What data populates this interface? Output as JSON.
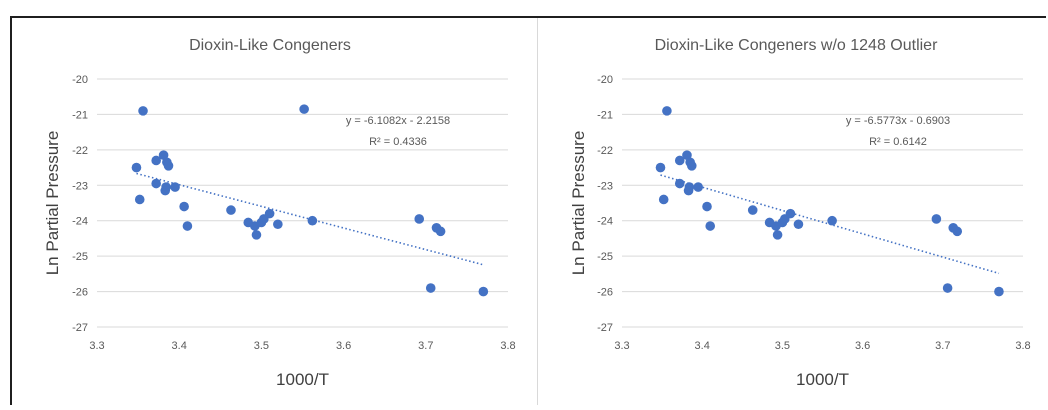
{
  "chart_data": [
    {
      "type": "scatter",
      "title": "Dioxin-Like Congeners",
      "xlabel": "1000/T",
      "ylabel": "Ln Partial Pressure",
      "xlim": [
        3.3,
        3.8
      ],
      "ylim": [
        -27,
        -20
      ],
      "x_ticks": [
        "3.3",
        "3.4",
        "3.5",
        "3.6",
        "3.7",
        "3.8"
      ],
      "y_ticks": [
        "-27",
        "-26",
        "-25",
        "-24",
        "-23",
        "-22",
        "-21",
        "-20"
      ],
      "grid": true,
      "marker_color": "#4472C4",
      "points": [
        {
          "x": 3.348,
          "y": -22.5
        },
        {
          "x": 3.352,
          "y": -23.4
        },
        {
          "x": 3.356,
          "y": -20.9
        },
        {
          "x": 3.372,
          "y": -22.3
        },
        {
          "x": 3.372,
          "y": -22.95
        },
        {
          "x": 3.381,
          "y": -22.15
        },
        {
          "x": 3.383,
          "y": -23.15
        },
        {
          "x": 3.384,
          "y": -23.05
        },
        {
          "x": 3.385,
          "y": -22.35
        },
        {
          "x": 3.387,
          "y": -22.45
        },
        {
          "x": 3.395,
          "y": -23.05
        },
        {
          "x": 3.406,
          "y": -23.6
        },
        {
          "x": 3.41,
          "y": -24.15
        },
        {
          "x": 3.463,
          "y": -23.7
        },
        {
          "x": 3.484,
          "y": -24.05
        },
        {
          "x": 3.492,
          "y": -24.15
        },
        {
          "x": 3.494,
          "y": -24.4
        },
        {
          "x": 3.5,
          "y": -24.05
        },
        {
          "x": 3.503,
          "y": -23.95
        },
        {
          "x": 3.51,
          "y": -23.8
        },
        {
          "x": 3.52,
          "y": -24.1
        },
        {
          "x": 3.552,
          "y": -20.85
        },
        {
          "x": 3.562,
          "y": -24.0
        },
        {
          "x": 3.692,
          "y": -23.95
        },
        {
          "x": 3.706,
          "y": -25.9
        },
        {
          "x": 3.713,
          "y": -24.2
        },
        {
          "x": 3.718,
          "y": -24.3
        },
        {
          "x": 3.77,
          "y": -26.0
        }
      ],
      "trendline": {
        "type": "linear",
        "slope": -6.1082,
        "intercept": -2.2158,
        "color": "#4472C4",
        "style": "dotted",
        "x_start": 3.348,
        "x_end": 3.77
      },
      "annotations": [
        "y = -6.1082x - 2.2158",
        "R² = 0.4336"
      ]
    },
    {
      "type": "scatter",
      "title": "Dioxin-Like Congeners w/o 1248 Outlier",
      "xlabel": "1000/T",
      "ylabel": "Ln Partial Pressure",
      "xlim": [
        3.3,
        3.8
      ],
      "ylim": [
        -27,
        -20
      ],
      "x_ticks": [
        "3.3",
        "3.4",
        "3.5",
        "3.6",
        "3.7",
        "3.8"
      ],
      "y_ticks": [
        "-27",
        "-26",
        "-25",
        "-24",
        "-23",
        "-22",
        "-21",
        "-20"
      ],
      "grid": true,
      "marker_color": "#4472C4",
      "points": [
        {
          "x": 3.348,
          "y": -22.5
        },
        {
          "x": 3.352,
          "y": -23.4
        },
        {
          "x": 3.356,
          "y": -20.9
        },
        {
          "x": 3.372,
          "y": -22.3
        },
        {
          "x": 3.372,
          "y": -22.95
        },
        {
          "x": 3.381,
          "y": -22.15
        },
        {
          "x": 3.383,
          "y": -23.15
        },
        {
          "x": 3.384,
          "y": -23.05
        },
        {
          "x": 3.385,
          "y": -22.35
        },
        {
          "x": 3.387,
          "y": -22.45
        },
        {
          "x": 3.395,
          "y": -23.05
        },
        {
          "x": 3.406,
          "y": -23.6
        },
        {
          "x": 3.41,
          "y": -24.15
        },
        {
          "x": 3.463,
          "y": -23.7
        },
        {
          "x": 3.484,
          "y": -24.05
        },
        {
          "x": 3.492,
          "y": -24.15
        },
        {
          "x": 3.494,
          "y": -24.4
        },
        {
          "x": 3.5,
          "y": -24.05
        },
        {
          "x": 3.503,
          "y": -23.95
        },
        {
          "x": 3.51,
          "y": -23.8
        },
        {
          "x": 3.52,
          "y": -24.1
        },
        {
          "x": 3.562,
          "y": -24.0
        },
        {
          "x": 3.692,
          "y": -23.95
        },
        {
          "x": 3.706,
          "y": -25.9
        },
        {
          "x": 3.713,
          "y": -24.2
        },
        {
          "x": 3.718,
          "y": -24.3
        },
        {
          "x": 3.77,
          "y": -26.0
        }
      ],
      "trendline": {
        "type": "linear",
        "slope": -6.5773,
        "intercept": -0.6903,
        "color": "#4472C4",
        "style": "dotted",
        "x_start": 3.348,
        "x_end": 3.77
      },
      "annotations": [
        "y = -6.5773x - 0.6903",
        "R² = 0.6142"
      ]
    }
  ]
}
